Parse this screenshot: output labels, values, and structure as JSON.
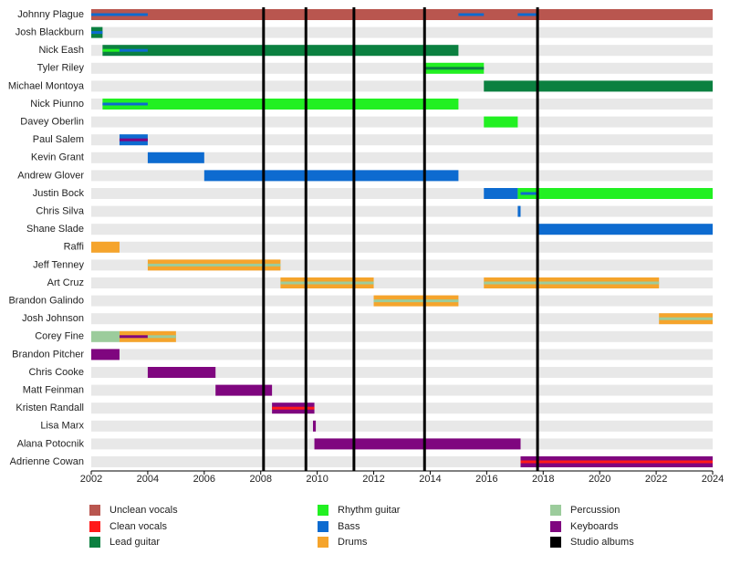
{
  "chart_data": {
    "type": "timeline",
    "xlim": [
      2002,
      2024
    ],
    "xticks": [
      2002,
      2004,
      2006,
      2008,
      2010,
      2012,
      2014,
      2016,
      2018,
      2020,
      2022,
      2024
    ],
    "legend": [
      {
        "name": "Unclean vocals",
        "color": "#b9564f"
      },
      {
        "name": "Clean vocals",
        "color": "#ff1a1a"
      },
      {
        "name": "Lead guitar",
        "color": "#0b8040"
      },
      {
        "name": "Rhythm guitar",
        "color": "#22f022"
      },
      {
        "name": "Bass",
        "color": "#0d6bd0"
      },
      {
        "name": "Drums",
        "color": "#f5a42c"
      },
      {
        "name": "Percussion",
        "color": "#9ccc9c"
      },
      {
        "name": "Keyboards",
        "color": "#7f067f"
      }
    ],
    "albums": {
      "name": "Studio albums",
      "color": "#000000",
      "x": [
        2008.1,
        2009.6,
        2011.3,
        2013.8,
        2017.8
      ]
    },
    "members": [
      {
        "name": "Johnny Plague",
        "bars": [
          {
            "color": "#b9564f",
            "start": 2002,
            "end": 2024
          }
        ],
        "stripes": [
          {
            "color": "#0d6bd0",
            "start": 2002,
            "end": 2004
          },
          {
            "color": "#0d6bd0",
            "start": 2015.0,
            "end": 2015.9
          },
          {
            "color": "#0d6bd0",
            "start": 2017.1,
            "end": 2017.8
          }
        ]
      },
      {
        "name": "Josh Blackburn",
        "bars": [
          {
            "color": "#0b8040",
            "start": 2002,
            "end": 2002.4
          }
        ],
        "stripes": [
          {
            "color": "#0d6bd0",
            "start": 2002,
            "end": 2002.4
          }
        ]
      },
      {
        "name": "Nick Eash",
        "bars": [
          {
            "color": "#0b8040",
            "start": 2002.4,
            "end": 2015.0
          }
        ],
        "stripes": [
          {
            "color": "#22f022",
            "start": 2002.4,
            "end": 2003
          },
          {
            "color": "#0d6bd0",
            "start": 2003,
            "end": 2004
          }
        ]
      },
      {
        "name": "Tyler Riley",
        "bars": [
          {
            "color": "#22f022",
            "start": 2013.8,
            "end": 2015.9
          }
        ],
        "stripes": [
          {
            "color": "#0b8040",
            "start": 2013.8,
            "end": 2015.9
          }
        ]
      },
      {
        "name": "Michael Montoya",
        "bars": [
          {
            "color": "#0b8040",
            "start": 2015.9,
            "end": 2024
          }
        ],
        "stripes": []
      },
      {
        "name": "Nick Piunno",
        "bars": [
          {
            "color": "#22f022",
            "start": 2002.4,
            "end": 2015.0
          }
        ],
        "stripes": [
          {
            "color": "#0d6bd0",
            "start": 2002.4,
            "end": 2004
          }
        ]
      },
      {
        "name": "Davey Oberlin",
        "bars": [
          {
            "color": "#22f022",
            "start": 2015.9,
            "end": 2017.1
          }
        ],
        "stripes": []
      },
      {
        "name": "Paul Salem",
        "bars": [
          {
            "color": "#0d6bd0",
            "start": 2003,
            "end": 2004
          }
        ],
        "stripes": [
          {
            "color": "#7f067f",
            "start": 2003,
            "end": 2004
          }
        ]
      },
      {
        "name": "Kevin Grant",
        "bars": [
          {
            "color": "#0d6bd0",
            "start": 2004,
            "end": 2006
          }
        ],
        "stripes": []
      },
      {
        "name": "Andrew Glover",
        "bars": [
          {
            "color": "#0d6bd0",
            "start": 2006,
            "end": 2015.0
          }
        ],
        "stripes": []
      },
      {
        "name": "Justin Bock",
        "bars": [
          {
            "color": "#0d6bd0",
            "start": 2015.9,
            "end": 2017.1
          },
          {
            "color": "#22f022",
            "start": 2017.1,
            "end": 2024
          }
        ],
        "stripes": [
          {
            "color": "#0d6bd0",
            "start": 2017.2,
            "end": 2017.8
          }
        ]
      },
      {
        "name": "Chris Silva",
        "bars": [
          {
            "color": "#0d6bd0",
            "start": 2017.1,
            "end": 2017.2
          }
        ],
        "stripes": []
      },
      {
        "name": "Shane Slade",
        "bars": [
          {
            "color": "#0d6bd0",
            "start": 2017.8,
            "end": 2024
          }
        ],
        "stripes": []
      },
      {
        "name": "Raffi",
        "bars": [
          {
            "color": "#f5a42c",
            "start": 2002,
            "end": 2003
          }
        ],
        "stripes": []
      },
      {
        "name": "Jeff Tenney",
        "bars": [
          {
            "color": "#f5a42c",
            "start": 2004,
            "end": 2008.7
          }
        ],
        "stripes": [
          {
            "color": "#9ccc9c",
            "start": 2004,
            "end": 2008.7
          }
        ]
      },
      {
        "name": "Art Cruz",
        "bars": [
          {
            "color": "#f5a42c",
            "start": 2008.7,
            "end": 2012
          },
          {
            "color": "#f5a42c",
            "start": 2015.9,
            "end": 2022.1
          }
        ],
        "stripes": [
          {
            "color": "#9ccc9c",
            "start": 2008.7,
            "end": 2012
          },
          {
            "color": "#9ccc9c",
            "start": 2015.9,
            "end": 2022.1
          }
        ]
      },
      {
        "name": "Brandon Galindo",
        "bars": [
          {
            "color": "#f5a42c",
            "start": 2012,
            "end": 2015.0
          }
        ],
        "stripes": [
          {
            "color": "#9ccc9c",
            "start": 2012,
            "end": 2015.0
          }
        ]
      },
      {
        "name": "Josh Johnson",
        "bars": [
          {
            "color": "#f5a42c",
            "start": 2022.1,
            "end": 2024
          }
        ],
        "stripes": [
          {
            "color": "#9ccc9c",
            "start": 2022.1,
            "end": 2024
          }
        ]
      },
      {
        "name": "Corey Fine",
        "bars": [
          {
            "color": "#9ccc9c",
            "start": 2002,
            "end": 2003
          },
          {
            "color": "#f5a42c",
            "start": 2003,
            "end": 2005
          }
        ],
        "stripes": [
          {
            "color": "#7f067f",
            "start": 2003,
            "end": 2004
          },
          {
            "color": "#9ccc9c",
            "start": 2004,
            "end": 2005
          }
        ]
      },
      {
        "name": "Brandon Pitcher",
        "bars": [
          {
            "color": "#7f067f",
            "start": 2002,
            "end": 2003
          }
        ],
        "stripes": []
      },
      {
        "name": "Chris Cooke",
        "bars": [
          {
            "color": "#7f067f",
            "start": 2004,
            "end": 2006.4
          }
        ],
        "stripes": []
      },
      {
        "name": "Matt Feinman",
        "bars": [
          {
            "color": "#7f067f",
            "start": 2006.4,
            "end": 2008.4
          }
        ],
        "stripes": []
      },
      {
        "name": "Kristen Randall",
        "bars": [
          {
            "color": "#7f067f",
            "start": 2008.4,
            "end": 2009.9
          }
        ],
        "stripes": [
          {
            "color": "#ff1a1a",
            "start": 2008.4,
            "end": 2009.9
          }
        ]
      },
      {
        "name": "Lisa Marx",
        "bars": [
          {
            "color": "#7f067f",
            "start": 2009.85,
            "end": 2009.95
          }
        ],
        "stripes": []
      },
      {
        "name": "Alana Potocnik",
        "bars": [
          {
            "color": "#7f067f",
            "start": 2009.9,
            "end": 2017.2
          }
        ],
        "stripes": []
      },
      {
        "name": "Adrienne Cowan",
        "bars": [
          {
            "color": "#7f067f",
            "start": 2017.2,
            "end": 2024
          }
        ],
        "stripes": [
          {
            "color": "#ff1a1a",
            "start": 2017.2,
            "end": 2024
          }
        ]
      }
    ]
  }
}
